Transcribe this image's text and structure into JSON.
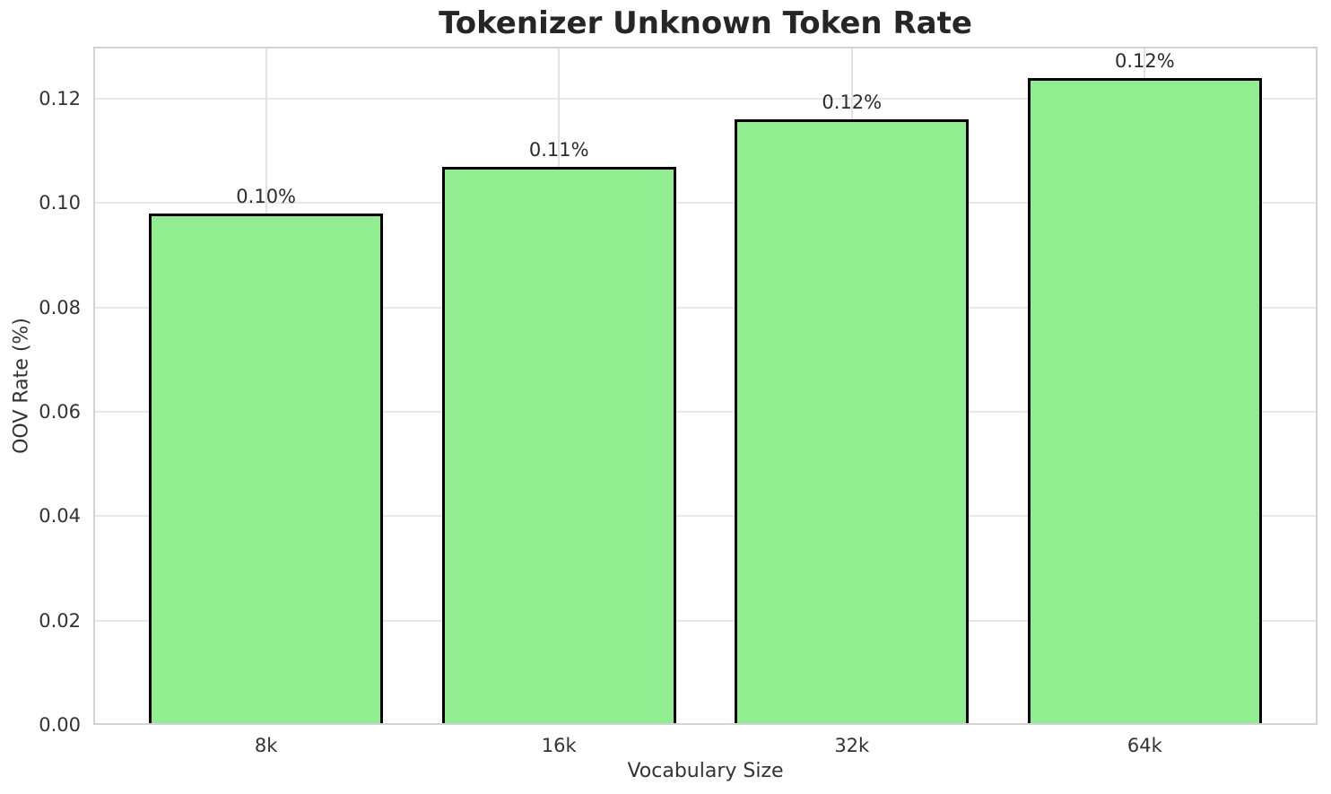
{
  "chart_data": {
    "type": "bar",
    "title": "Tokenizer Unknown Token Rate",
    "xlabel": "Vocabulary Size",
    "ylabel": "OOV Rate (%)",
    "categories": [
      "8k",
      "16k",
      "32k",
      "64k"
    ],
    "values": [
      0.098,
      0.107,
      0.116,
      0.124
    ],
    "bar_labels": [
      "0.10%",
      "0.11%",
      "0.12%",
      "0.12%"
    ],
    "yticks": [
      0.0,
      0.02,
      0.04,
      0.06,
      0.08,
      0.1,
      0.12
    ],
    "ytick_labels": [
      "0.00",
      "0.02",
      "0.04",
      "0.06",
      "0.08",
      "0.10",
      "0.12"
    ],
    "ylim": [
      0,
      0.13
    ],
    "grid": true,
    "legend": "none",
    "bar_color": "#90EE90",
    "bar_edge_color": "#000000"
  }
}
